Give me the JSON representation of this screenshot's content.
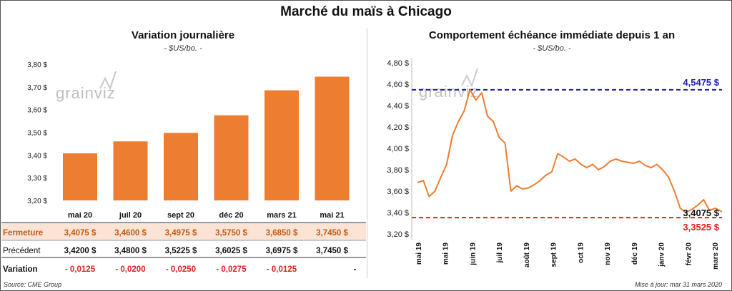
{
  "title": "Marché du maïs à Chicago",
  "left_chart": {
    "title": "Variation journalière",
    "subtitle": "- $US/bo. -",
    "watermark": "grainviz",
    "bar_color": "#ED7D31",
    "table": {
      "rows": [
        {
          "label": "Fermeture",
          "values": [
            "3,4075  $",
            "3,4600  $",
            "3,4975  $",
            "3,5750  $",
            "3,6850  $",
            "3,7450  $"
          ]
        },
        {
          "label": "Précédent",
          "values": [
            "3,4200  $",
            "3,4800  $",
            "3,5225  $",
            "3,6025  $",
            "3,6975  $",
            "3,7450  $"
          ]
        },
        {
          "label": "Variation",
          "values": [
            "- 0,0125",
            "- 0,0200",
            "- 0,0250",
            "- 0,0275",
            "- 0,0125",
            "-"
          ]
        }
      ]
    }
  },
  "right_chart": {
    "title": "Comportement  échéance immédiate depuis 1 an",
    "subtitle": "- $US/bo. -",
    "watermark": "grainviz",
    "line_color": "#ED7D31",
    "high_line_color": "#1F1FA8",
    "low_line_color": "#E02020"
  },
  "chart_data": [
    {
      "type": "bar",
      "categories": [
        "mai 20",
        "juil 20",
        "sept 20",
        "déc 20",
        "mars 21",
        "mai 21"
      ],
      "values": [
        3.4075,
        3.46,
        3.4975,
        3.575,
        3.685,
        3.745
      ],
      "ylim": [
        3.2,
        3.8
      ],
      "yticks": [
        "3,20 $",
        "3,30 $",
        "3,40 $",
        "3,50 $",
        "3,60 $",
        "3,70 $",
        "3,80 $"
      ],
      "grid": false
    },
    {
      "type": "line",
      "x": [
        "2019-04-01",
        "2019-04-08",
        "2019-04-15",
        "2019-04-22",
        "2019-04-29",
        "2019-05-06",
        "2019-05-13",
        "2019-05-20",
        "2019-05-27",
        "2019-06-03",
        "2019-06-10",
        "2019-06-17",
        "2019-06-24",
        "2019-07-01",
        "2019-07-08",
        "2019-07-15",
        "2019-07-22",
        "2019-07-29",
        "2019-08-05",
        "2019-08-12",
        "2019-08-19",
        "2019-08-26",
        "2019-09-02",
        "2019-09-09",
        "2019-09-16",
        "2019-09-23",
        "2019-09-30",
        "2019-10-07",
        "2019-10-14",
        "2019-10-21",
        "2019-10-28",
        "2019-11-04",
        "2019-11-11",
        "2019-11-18",
        "2019-11-25",
        "2019-12-02",
        "2019-12-09",
        "2019-12-16",
        "2019-12-23",
        "2019-12-30",
        "2020-01-06",
        "2020-01-13",
        "2020-01-20",
        "2020-01-27",
        "2020-02-03",
        "2020-02-10",
        "2020-02-17",
        "2020-02-24",
        "2020-03-02",
        "2020-03-09",
        "2020-03-16",
        "2020-03-23",
        "2020-03-31"
      ],
      "values": [
        3.68,
        3.7,
        3.55,
        3.6,
        3.73,
        3.85,
        4.12,
        4.25,
        4.35,
        4.55,
        4.45,
        4.52,
        4.3,
        4.25,
        4.1,
        4.05,
        3.6,
        3.65,
        3.62,
        3.63,
        3.66,
        3.7,
        3.75,
        3.78,
        3.95,
        3.92,
        3.88,
        3.9,
        3.85,
        3.82,
        3.85,
        3.8,
        3.83,
        3.88,
        3.9,
        3.88,
        3.87,
        3.86,
        3.88,
        3.84,
        3.82,
        3.85,
        3.8,
        3.73,
        3.6,
        3.44,
        3.4,
        3.43,
        3.47,
        3.52,
        3.42,
        3.44,
        3.4075
      ],
      "ylim": [
        3.2,
        4.8
      ],
      "yticks": [
        "3,20 $",
        "3,40 $",
        "3,60 $",
        "3,80 $",
        "4,00 $",
        "4,20 $",
        "4,40 $",
        "4,60 $",
        "4,80 $"
      ],
      "xticks": [
        "mai 19",
        "mai 19",
        "juin 19",
        "juil 19",
        "août 19",
        "sept 19",
        "oct 19",
        "nov 19",
        "déc 19",
        "janv 20",
        "févr 20",
        "mars 20"
      ],
      "reference_lines": [
        {
          "value": 4.5475,
          "label": "4,5475 $",
          "style": "dashed"
        },
        {
          "value": 3.3525,
          "label": "3,3525 $",
          "style": "dashed"
        }
      ],
      "last_value_label": "3,4075 $",
      "grid": false
    }
  ],
  "footer": {
    "source": "Source: CME Group",
    "updated": "Mise à jour: mar 31 mars 2020"
  }
}
